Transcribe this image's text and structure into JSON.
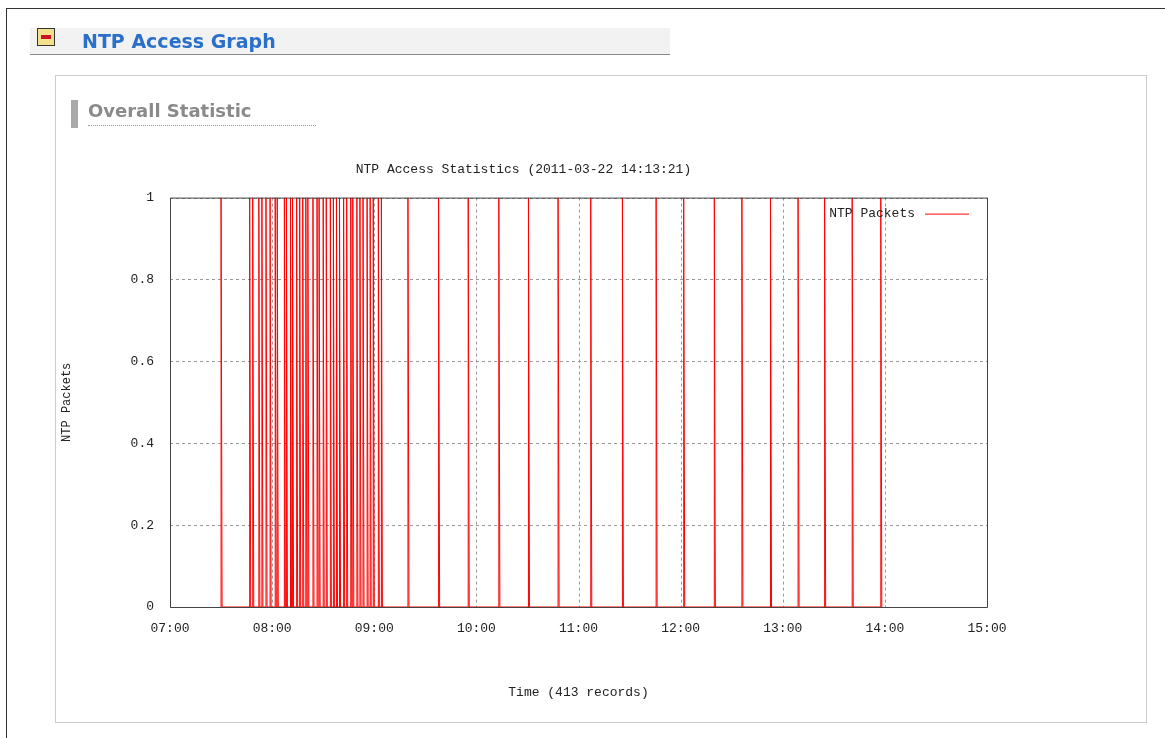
{
  "chart_data": {
    "type": "line",
    "title": "NTP Access Statistics (2011-03-22 14:13:21)",
    "xlabel": "Time (413 records)",
    "ylabel": "NTP Packets",
    "annotations": [
      "NTP Access Graph",
      "Overall Statistic"
    ],
    "xlim": [
      7,
      15
    ],
    "xticks": [
      {
        "value": 7,
        "label": "07:00"
      },
      {
        "value": 8,
        "label": "08:00"
      },
      {
        "value": 9,
        "label": "09:00"
      },
      {
        "value": 10,
        "label": "10:00"
      },
      {
        "value": 11,
        "label": "11:00"
      },
      {
        "value": 12,
        "label": "12:00"
      },
      {
        "value": 13,
        "label": "13:00"
      },
      {
        "value": 14,
        "label": "14:00"
      },
      {
        "value": 15,
        "label": "15:00"
      }
    ],
    "ylim": [
      0,
      1
    ],
    "yticks": [
      0,
      0.2,
      0.4,
      0.6,
      0.8,
      1
    ],
    "grid": true,
    "legend": "top right",
    "marker": "none",
    "line_style": "solid",
    "series": [
      {
        "name": "NTP Packets",
        "color": "#ff0000",
        "x": [
          7.5,
          7.5,
          7.51,
          7.78,
          7.78,
          7.79,
          7.81,
          7.81,
          7.82,
          7.87,
          7.87,
          7.88,
          7.9,
          7.9,
          7.91,
          7.94,
          7.94,
          7.95,
          7.98,
          7.98,
          7.99,
          8.03,
          8.03,
          8.04,
          8.05,
          8.05,
          8.06,
          8.12,
          8.12,
          8.13,
          8.14,
          8.14,
          8.15,
          8.18,
          8.18,
          8.19,
          8.2,
          8.2,
          8.21,
          8.24,
          8.24,
          8.25,
          8.27,
          8.27,
          8.28,
          8.3,
          8.3,
          8.31,
          8.33,
          8.33,
          8.34,
          8.35,
          8.35,
          8.36,
          8.4,
          8.4,
          8.41,
          8.44,
          8.44,
          8.45,
          8.46,
          8.46,
          8.47,
          8.5,
          8.5,
          8.51,
          8.53,
          8.53,
          8.54,
          8.57,
          8.57,
          8.58,
          8.6,
          8.6,
          8.61,
          8.63,
          8.63,
          8.64,
          8.66,
          8.66,
          8.67,
          8.7,
          8.7,
          8.71,
          8.73,
          8.73,
          8.74,
          8.77,
          8.77,
          8.78,
          8.79,
          8.79,
          8.8,
          8.83,
          8.83,
          8.84,
          8.86,
          8.86,
          8.87,
          8.89,
          8.89,
          8.9,
          8.93,
          8.93,
          8.94,
          8.96,
          8.96,
          8.97,
          8.99,
          8.99,
          9,
          9.04,
          9.04,
          9.05,
          9.07,
          9.07,
          9.08,
          9.33,
          9.33,
          9.34,
          9.63,
          9.63,
          9.64,
          9.92,
          9.92,
          9.93,
          10.22,
          10.22,
          10.23,
          10.51,
          10.51,
          10.52,
          10.8,
          10.8,
          10.81,
          11.12,
          11.12,
          11.13,
          11.43,
          11.43,
          11.44,
          11.76,
          11.76,
          11.77,
          12.03,
          12.03,
          12.04,
          12.33,
          12.33,
          12.34,
          12.6,
          12.6,
          12.61,
          12.88,
          12.88,
          12.89,
          13.15,
          13.15,
          13.16,
          13.41,
          13.41,
          13.42,
          13.68,
          13.68,
          13.69,
          13.96,
          13.96,
          13.97
        ],
        "values": [
          0,
          1,
          0,
          0,
          1,
          0,
          0,
          1,
          0,
          0,
          1,
          0,
          0,
          1,
          0,
          0,
          1,
          0,
          0,
          1,
          0,
          0,
          1,
          0,
          0,
          1,
          0,
          0,
          1,
          0,
          0,
          1,
          0,
          0,
          1,
          0,
          0,
          1,
          0,
          0,
          1,
          0,
          0,
          1,
          0,
          0,
          1,
          0,
          0,
          1,
          0,
          0,
          1,
          0,
          0,
          1,
          0,
          0,
          1,
          0,
          0,
          1,
          0,
          0,
          1,
          0,
          0,
          1,
          0,
          0,
          1,
          0,
          0,
          1,
          0,
          0,
          1,
          0,
          0,
          1,
          0,
          0,
          1,
          0,
          0,
          1,
          0,
          0,
          1,
          0,
          0,
          1,
          0,
          0,
          1,
          0,
          0,
          1,
          0,
          0,
          1,
          0,
          0,
          1,
          0,
          0,
          1,
          0,
          0,
          1,
          0,
          0,
          1,
          0,
          0,
          1,
          0,
          0,
          1,
          0,
          0,
          1,
          0,
          0,
          1,
          0,
          0,
          1,
          0,
          0,
          1,
          0,
          0,
          1,
          0,
          0,
          1,
          0,
          0,
          1,
          0,
          0,
          1,
          0,
          0,
          1,
          0,
          0,
          1,
          0,
          0,
          1,
          0,
          0,
          1,
          0,
          0,
          1,
          0,
          0,
          1,
          0,
          0,
          1,
          0,
          0,
          1,
          0
        ]
      }
    ]
  }
}
